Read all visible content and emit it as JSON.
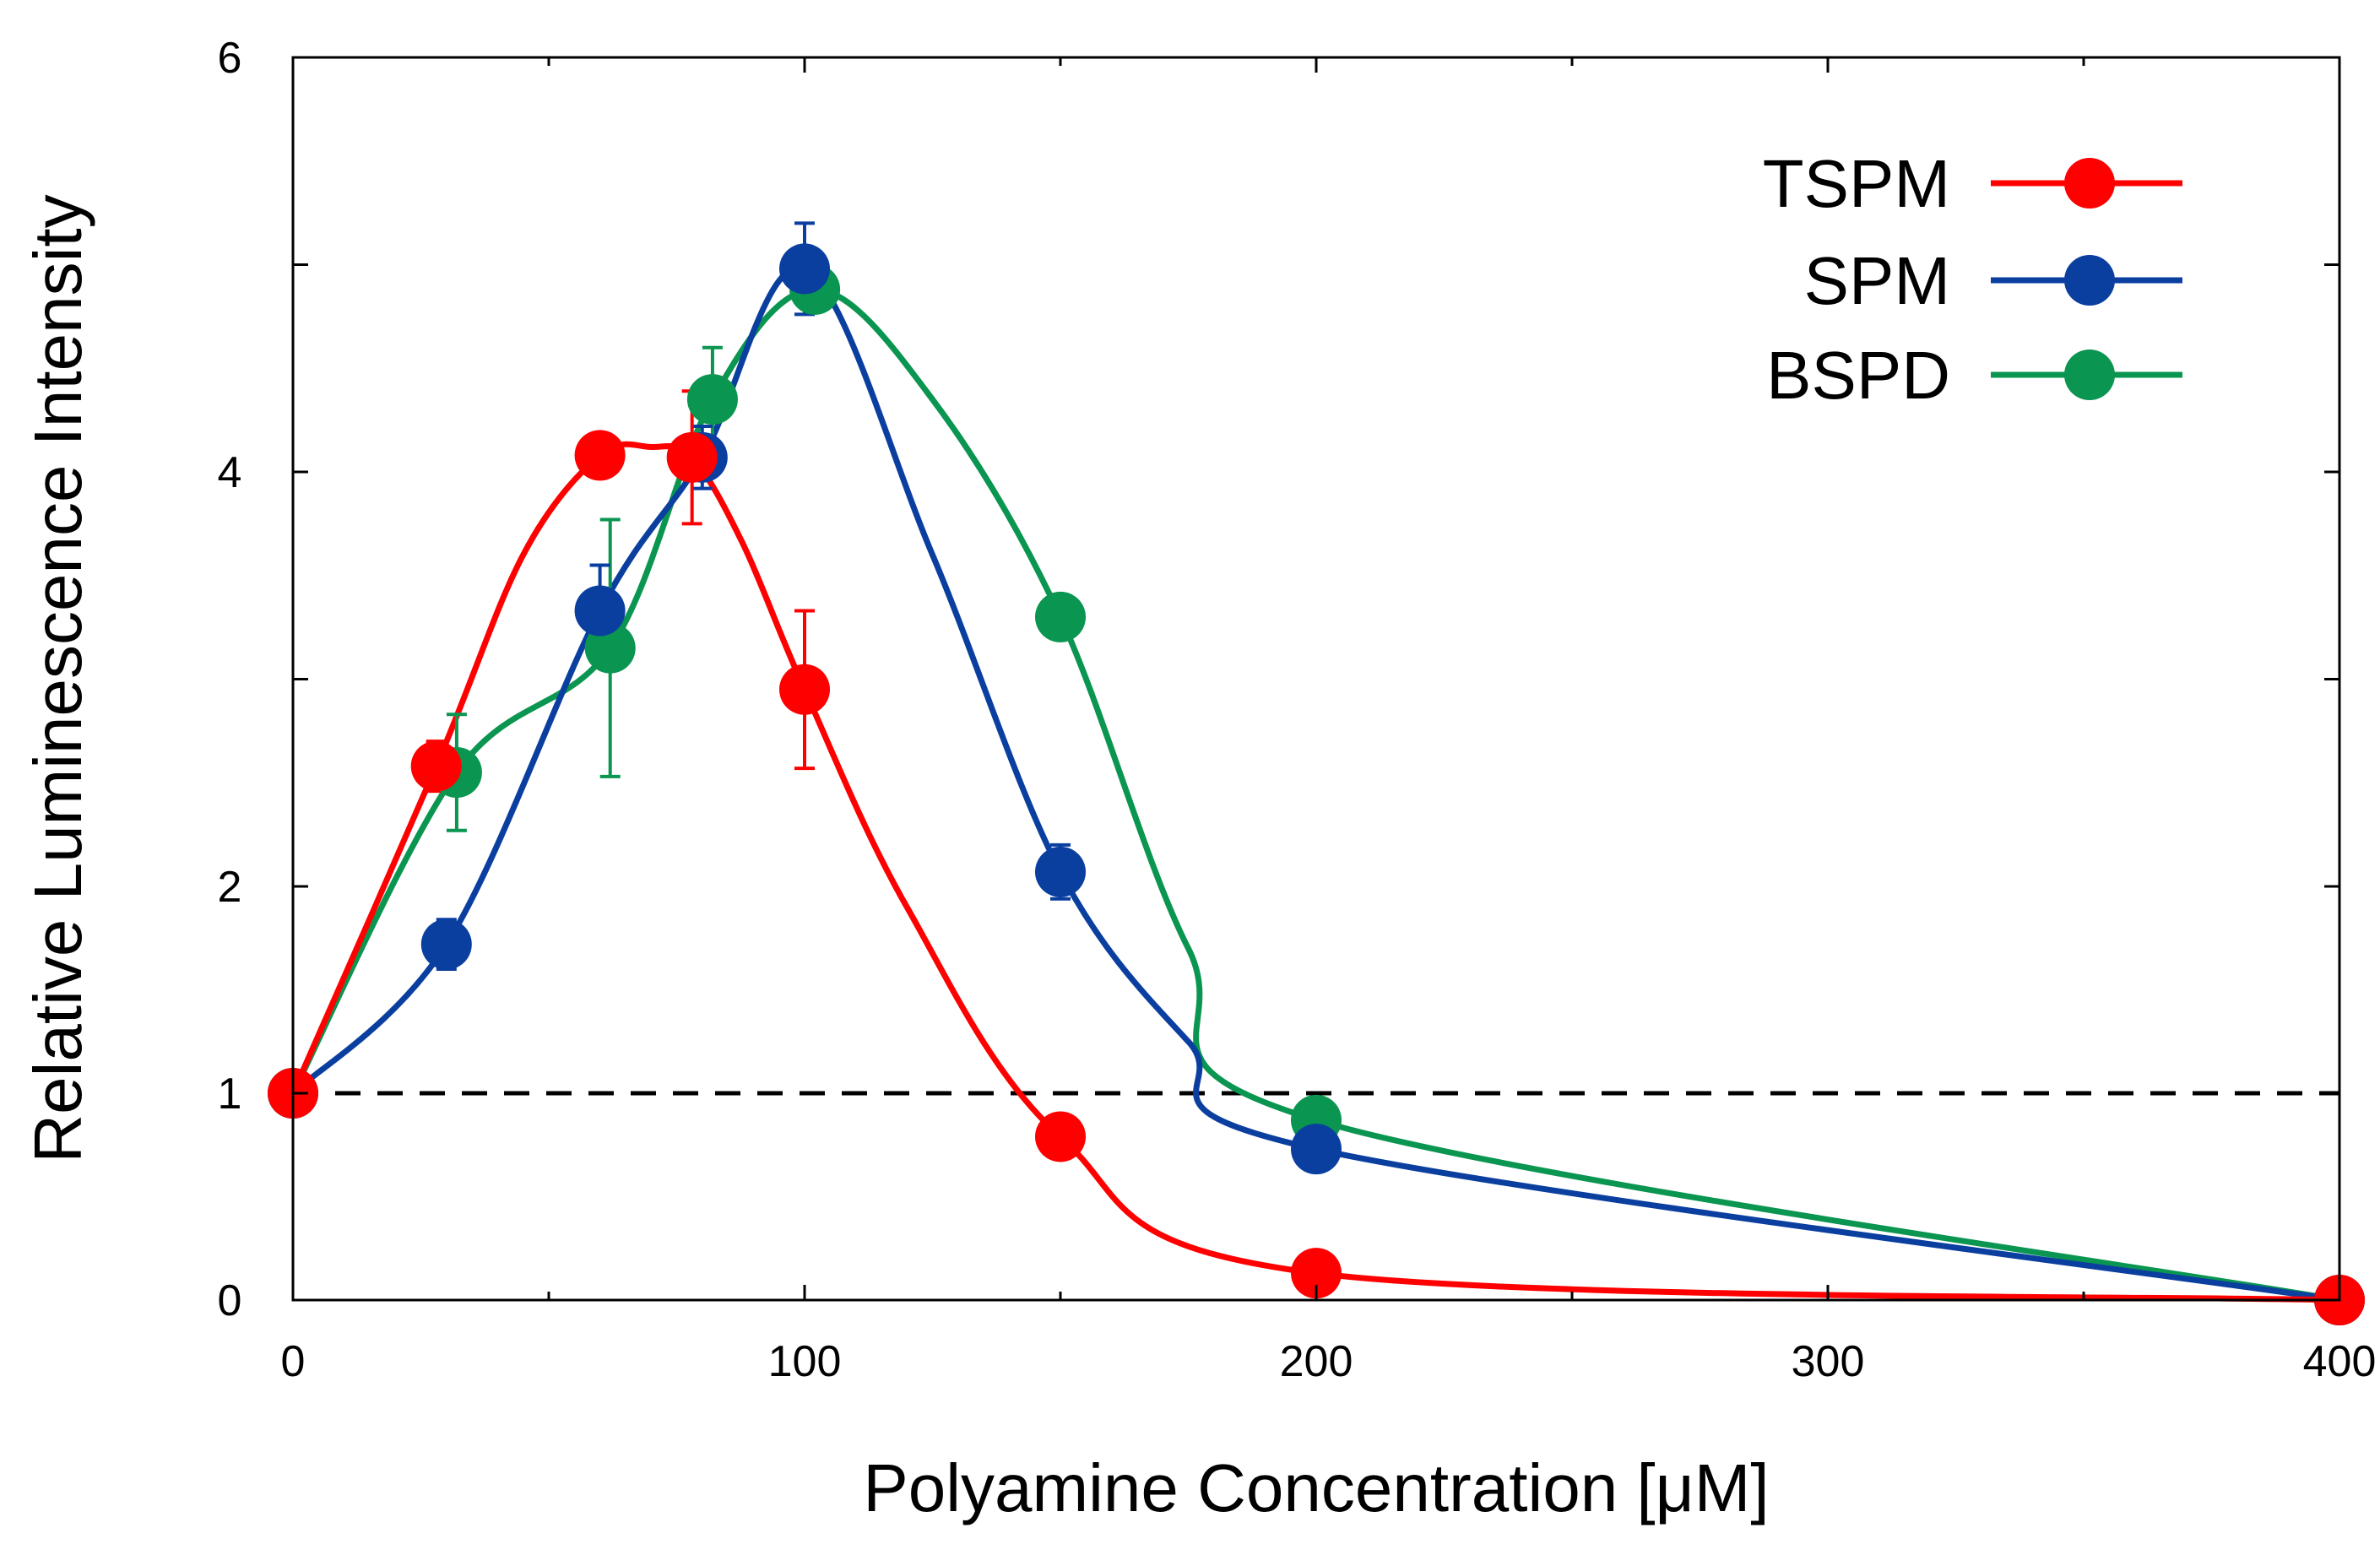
{
  "chart_data": {
    "type": "line",
    "title": "",
    "xlabel": "Polyamine Concentration [μM]",
    "ylabel": "Relative Luminescence Intensity",
    "xlim": [
      0,
      400
    ],
    "ylim": [
      0,
      6
    ],
    "x_ticks": [
      0,
      100,
      200,
      300,
      400
    ],
    "x_tick_labels": [
      "0",
      "100",
      "200",
      "300",
      "400"
    ],
    "x_minor_ticks": [
      50,
      150,
      250,
      350
    ],
    "y_ticks": [
      0,
      1,
      2,
      4,
      6
    ],
    "y_tick_labels": [
      "0",
      "1",
      "2",
      "4",
      "6"
    ],
    "y_minor_ticks": [
      3,
      5
    ],
    "reference_line": {
      "y": 1,
      "style": "dashed",
      "color": "#000000"
    },
    "legend_position": "top-right",
    "series": [
      {
        "name": "TSPM",
        "color": "#ff0000",
        "x": [
          0,
          28,
          60,
          78,
          100,
          150,
          200,
          400
        ],
        "y": [
          1.0,
          2.58,
          4.08,
          4.07,
          2.95,
          0.79,
          0.13,
          0.0
        ],
        "err": [
          0,
          0.12,
          0,
          0.32,
          0.38,
          0.08,
          0,
          0
        ],
        "curve_x": [
          0,
          28,
          45,
          60,
          70,
          78,
          88,
          100,
          120,
          150,
          200,
          400
        ],
        "curve_y": [
          1.0,
          2.58,
          3.6,
          4.08,
          4.12,
          4.07,
          3.65,
          2.95,
          1.9,
          0.79,
          0.13,
          0.0
        ]
      },
      {
        "name": "SPM",
        "color": "#0a3fa0",
        "x": [
          0,
          30,
          60,
          80,
          100,
          150,
          200,
          400
        ],
        "y": [
          1.0,
          1.72,
          3.33,
          4.07,
          4.98,
          2.07,
          0.73,
          0.0
        ],
        "err": [
          0,
          0.12,
          0.22,
          0.15,
          0.22,
          0.13,
          0,
          0
        ],
        "curve_x": [
          0,
          30,
          60,
          80,
          100,
          125,
          150,
          175,
          200,
          400
        ],
        "curve_y": [
          1.0,
          1.72,
          3.33,
          4.07,
          4.98,
          3.6,
          2.07,
          1.25,
          0.73,
          0.0
        ],
        "curve_y_dummy": []
      },
      {
        "name": "BSPD",
        "color": "#0a9550",
        "x": [
          0,
          32,
          62,
          82,
          102,
          150,
          200,
          400
        ],
        "y": [
          1.0,
          2.55,
          3.15,
          4.35,
          4.88,
          3.3,
          0.87,
          0.0
        ],
        "err": [
          0,
          0.28,
          0.62,
          0.25,
          0.06,
          0.1,
          0,
          0
        ],
        "curve_x": [
          0,
          32,
          62,
          82,
          102,
          125,
          150,
          175,
          200,
          400
        ],
        "curve_y": [
          1.0,
          2.55,
          3.15,
          4.35,
          4.88,
          4.35,
          3.3,
          1.7,
          0.87,
          0.0
        ]
      }
    ]
  }
}
